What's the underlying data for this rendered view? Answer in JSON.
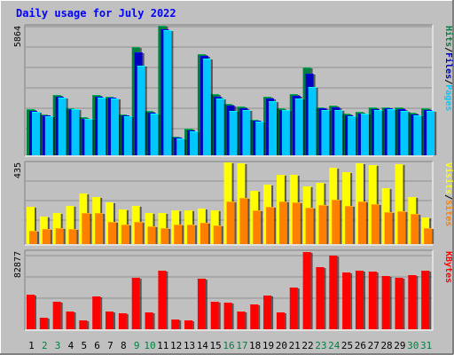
{
  "chart_data": [
    {
      "type": "bar",
      "title": "Daily usage for July 2022",
      "panel": "hits-files-pages",
      "categories": [
        "1",
        "2",
        "3",
        "4",
        "5",
        "6",
        "7",
        "8",
        "9",
        "10",
        "11",
        "12",
        "13",
        "14",
        "15",
        "16",
        "17",
        "18",
        "19",
        "20",
        "21",
        "22",
        "23",
        "24",
        "25",
        "26",
        "27",
        "28",
        "29",
        "30",
        "31"
      ],
      "weekend_days": [
        "2",
        "3",
        "9",
        "10",
        "16",
        "17",
        "23",
        "24",
        "30",
        "31"
      ],
      "ymax_label": "5864",
      "ylim": [
        0,
        5864
      ],
      "legend": [
        "Pages",
        "/",
        "Files",
        "/",
        "Hits"
      ],
      "series": [
        {
          "name": "Hits",
          "color": "#008040",
          "values": [
            2090,
            1860,
            2740,
            2130,
            1740,
            2730,
            2660,
            1830,
            4910,
            1990,
            5860,
            860,
            1210,
            4590,
            2760,
            2330,
            2200,
            1620,
            2660,
            2130,
            2770,
            3960,
            2180,
            2260,
            1870,
            1960,
            2180,
            2180,
            2160,
            1920,
            2120
          ]
        },
        {
          "name": "Files",
          "color": "#0000c0",
          "values": [
            2000,
            1800,
            2660,
            2090,
            1660,
            2650,
            2600,
            1790,
            4650,
            1930,
            5720,
            800,
            1130,
            4480,
            2650,
            2250,
            2130,
            1560,
            2590,
            2060,
            2690,
            3690,
            2110,
            2180,
            1800,
            1890,
            2100,
            2110,
            2090,
            1860,
            2050
          ]
        },
        {
          "name": "Pages",
          "color": "#00c8ff",
          "values": [
            1980,
            1760,
            2620,
            2070,
            1640,
            2610,
            2560,
            1760,
            4050,
            1890,
            5680,
            780,
            1080,
            4360,
            2590,
            1990,
            2060,
            1530,
            2470,
            2030,
            2590,
            3100,
            2030,
            2030,
            1760,
            1870,
            2030,
            2070,
            2020,
            1800,
            1990
          ]
        }
      ]
    },
    {
      "type": "bar",
      "panel": "visits-sites",
      "categories": [
        "1",
        "2",
        "3",
        "4",
        "5",
        "6",
        "7",
        "8",
        "9",
        "10",
        "11",
        "12",
        "13",
        "14",
        "15",
        "16",
        "17",
        "18",
        "19",
        "20",
        "21",
        "22",
        "23",
        "24",
        "25",
        "26",
        "27",
        "28",
        "29",
        "30",
        "31"
      ],
      "ymax_label": "435",
      "ylim": [
        0,
        435
      ],
      "legend": [
        "Sites",
        "/",
        "Visits"
      ],
      "series": [
        {
          "name": "Visits",
          "color": "#ffff00",
          "values": [
            200,
            145,
            165,
            205,
            270,
            250,
            220,
            185,
            205,
            165,
            165,
            180,
            180,
            190,
            180,
            435,
            430,
            285,
            315,
            370,
            370,
            305,
            325,
            405,
            385,
            430,
            420,
            300,
            425,
            250,
            140
          ]
        },
        {
          "name": "Sites",
          "color": "#ff8000",
          "values": [
            70,
            80,
            85,
            80,
            165,
            165,
            120,
            105,
            120,
            95,
            85,
            105,
            105,
            115,
            100,
            225,
            245,
            180,
            200,
            225,
            220,
            195,
            210,
            235,
            205,
            225,
            215,
            170,
            175,
            160,
            85
          ]
        }
      ]
    },
    {
      "type": "bar",
      "panel": "kbytes",
      "categories": [
        "1",
        "2",
        "3",
        "4",
        "5",
        "6",
        "7",
        "8",
        "9",
        "10",
        "11",
        "12",
        "13",
        "14",
        "15",
        "16",
        "17",
        "18",
        "19",
        "20",
        "21",
        "22",
        "23",
        "24",
        "25",
        "26",
        "27",
        "28",
        "29",
        "30",
        "31"
      ],
      "ymax_label": "82877",
      "ylim": [
        0,
        82877
      ],
      "legend": [
        "KBytes"
      ],
      "series": [
        {
          "name": "KBytes",
          "color": "#ff0000",
          "values": [
            36400,
            12300,
            29000,
            18500,
            9300,
            34700,
            19100,
            16700,
            54400,
            17500,
            62300,
            10300,
            9000,
            53600,
            29600,
            27800,
            19100,
            26300,
            36200,
            17700,
            44200,
            81700,
            65700,
            78300,
            60400,
            61700,
            61000,
            56900,
            54400,
            57400,
            61700
          ]
        }
      ]
    }
  ]
}
